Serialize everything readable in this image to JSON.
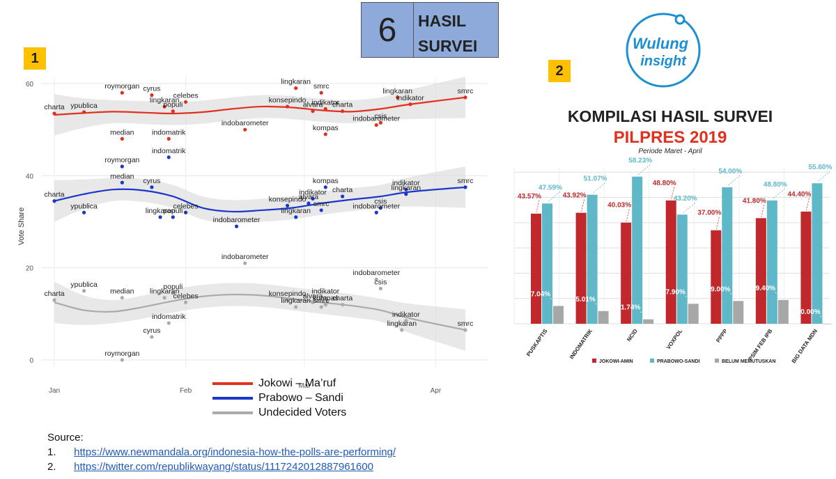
{
  "header": {
    "number": "6",
    "title_line1": "HASIL",
    "title_line2": "SURVEI"
  },
  "badges": {
    "left": "1",
    "right": "2"
  },
  "legend": [
    {
      "label": "Jokowi – Ma’ruf",
      "color": "#e0301e"
    },
    {
      "label": "Prabowo – Sandi",
      "color": "#1b36c9"
    },
    {
      "label": "Undecided Voters",
      "color": "#aaaaaa"
    }
  ],
  "sources": {
    "heading": "Source:",
    "items": [
      {
        "num": "1.",
        "url": "https://www.newmandala.org/indonesia-how-the-polls-are-performing/"
      },
      {
        "num": "2.",
        "url": "https://twitter.com/republikwayang/status/1117242012887961600"
      }
    ]
  },
  "logo": {
    "text_line1": "Wulung",
    "text_line2": "insight"
  },
  "chart_data": [
    {
      "type": "scatter",
      "title": "",
      "xlabel": "",
      "ylabel": "Vote Share",
      "ylim": [
        0,
        62
      ],
      "yticks": [
        0,
        20,
        40,
        60
      ],
      "xticks": [
        "Jan",
        "Feb",
        "Mar",
        "Apr"
      ],
      "grid": true,
      "series": [
        {
          "name": "Jokowi – Ma’ruf",
          "color": "#e0301e",
          "points": [
            {
              "label": "charta",
              "date": "Jan 1",
              "y": 53.5
            },
            {
              "label": "ypublica",
              "date": "Jan 8",
              "y": 53.8
            },
            {
              "label": "roymorgan",
              "date": "Jan 17",
              "y": 58.0
            },
            {
              "label": "median",
              "date": "Jan 17",
              "y": 48.0
            },
            {
              "label": "cyrus",
              "date": "Jan 24",
              "y": 57.5
            },
            {
              "label": "lingkaran",
              "date": "Jan 27",
              "y": 55.0
            },
            {
              "label": "populi",
              "date": "Jan 29",
              "y": 54.0
            },
            {
              "label": "indomatrik",
              "date": "Jan 28",
              "y": 48.0
            },
            {
              "label": "celebes",
              "date": "Feb 1",
              "y": 56.0
            },
            {
              "label": "indobarometer",
              "date": "Feb 15",
              "y": 50.0
            },
            {
              "label": "lingkaran",
              "date": "Feb 27",
              "y": 59.0
            },
            {
              "label": "konsepindo",
              "date": "Feb 25",
              "y": 55.0
            },
            {
              "label": "smrc",
              "date": "Mar 5",
              "y": 58.0
            },
            {
              "label": "alvara",
              "date": "Mar 3",
              "y": 54.0
            },
            {
              "label": "indikator",
              "date": "Mar 6",
              "y": 54.5
            },
            {
              "label": "charta",
              "date": "Mar 10",
              "y": 54.0
            },
            {
              "label": "kompas",
              "date": "Mar 6",
              "y": 49.0
            },
            {
              "label": "csis",
              "date": "Mar 19",
              "y": 51.5
            },
            {
              "label": "indobarometer",
              "date": "Mar 18",
              "y": 51.0
            },
            {
              "label": "lingkaran",
              "date": "Mar 23",
              "y": 57.0
            },
            {
              "label": "indikator",
              "date": "Mar 26",
              "y": 55.5
            },
            {
              "label": "smrc",
              "date": "Apr 8",
              "y": 57.0
            }
          ]
        },
        {
          "name": "Prabowo – Sandi",
          "color": "#1b36c9",
          "points": [
            {
              "label": "charta",
              "date": "Jan 1",
              "y": 34.5
            },
            {
              "label": "ypublica",
              "date": "Jan 8",
              "y": 32.0
            },
            {
              "label": "roymorgan",
              "date": "Jan 17",
              "y": 42.0
            },
            {
              "label": "median",
              "date": "Jan 17",
              "y": 38.5
            },
            {
              "label": "indomatrik",
              "date": "Jan 28",
              "y": 44.0
            },
            {
              "label": "cyrus",
              "date": "Jan 24",
              "y": 37.5
            },
            {
              "label": "lingkaran",
              "date": "Jan 26",
              "y": 31.0
            },
            {
              "label": "populi",
              "date": "Jan 29",
              "y": 31.0
            },
            {
              "label": "celebes",
              "date": "Feb 1",
              "y": 32.0
            },
            {
              "label": "indobarometer",
              "date": "Feb 13",
              "y": 29.0
            },
            {
              "label": "konsepindo",
              "date": "Feb 25",
              "y": 33.5
            },
            {
              "label": "lingkaran",
              "date": "Feb 27",
              "y": 31.0
            },
            {
              "label": "indikator",
              "date": "Mar 3",
              "y": 35.0
            },
            {
              "label": "alvara",
              "date": "Mar 2",
              "y": 34.0
            },
            {
              "label": "kompas",
              "date": "Mar 6",
              "y": 37.5
            },
            {
              "label": "smrc",
              "date": "Mar 5",
              "y": 32.5
            },
            {
              "label": "charta",
              "date": "Mar 10",
              "y": 35.5
            },
            {
              "label": "csis",
              "date": "Mar 19",
              "y": 33.0
            },
            {
              "label": "indobarometer",
              "date": "Mar 18",
              "y": 32.0
            },
            {
              "label": "indikator",
              "date": "Mar 25",
              "y": 37.0
            },
            {
              "label": "lingkaran",
              "date": "Mar 25",
              "y": 36.0
            },
            {
              "label": "smrc",
              "date": "Apr 8",
              "y": 37.5
            }
          ]
        },
        {
          "name": "Undecided Voters",
          "color": "#aaaaaa",
          "points": [
            {
              "label": "charta",
              "date": "Jan 1",
              "y": 13.0
            },
            {
              "label": "ypublica",
              "date": "Jan 8",
              "y": 15.0
            },
            {
              "label": "median",
              "date": "Jan 17",
              "y": 13.5
            },
            {
              "label": "lingkaran",
              "date": "Jan 27",
              "y": 13.5
            },
            {
              "label": "populi",
              "date": "Jan 29",
              "y": 14.5
            },
            {
              "label": "celebes",
              "date": "Feb 1",
              "y": 12.5
            },
            {
              "label": "indomatrik",
              "date": "Jan 28",
              "y": 8.0
            },
            {
              "label": "cyrus",
              "date": "Jan 24",
              "y": 5.0
            },
            {
              "label": "roymorgan",
              "date": "Jan 17",
              "y": 0.0
            },
            {
              "label": "indobarometer",
              "date": "Feb 15",
              "y": 21.0
            },
            {
              "label": "konsepindo",
              "date": "Feb 25",
              "y": 13.0
            },
            {
              "label": "alvara",
              "date": "Mar 3",
              "y": 12.5
            },
            {
              "label": "lingkaran",
              "date": "Feb 27",
              "y": 11.5
            },
            {
              "label": "indikator",
              "date": "Mar 6",
              "y": 13.5
            },
            {
              "label": "kompas",
              "date": "Mar 6",
              "y": 12.0
            },
            {
              "label": "smrc",
              "date": "Mar 5",
              "y": 11.5
            },
            {
              "label": "charta",
              "date": "Mar 10",
              "y": 12.0
            },
            {
              "label": "indobarometer",
              "date": "Mar 18",
              "y": 17.5
            },
            {
              "label": "csis",
              "date": "Mar 19",
              "y": 15.5
            },
            {
              "label": "indikator",
              "date": "Mar 25",
              "y": 8.5
            },
            {
              "label": "lingkaran",
              "date": "Mar 24",
              "y": 6.5
            },
            {
              "label": "smrc",
              "date": "Apr 8",
              "y": 6.5
            }
          ]
        }
      ],
      "trend": {
        "Jokowi – Ma’ruf": [
          53.2,
          53.6,
          53.9,
          53.7,
          53.5,
          53.8,
          54.5,
          55.0,
          54.8,
          54.2,
          53.9,
          54.5,
          55.5,
          57.0
        ],
        "Prabowo – Sandi": [
          34.5,
          36.0,
          37.0,
          36.8,
          35.5,
          33.0,
          32.2,
          32.5,
          33.0,
          34.0,
          34.8,
          35.5,
          36.5,
          37.5
        ],
        "Undecided Voters": [
          12.5,
          10.8,
          10.5,
          11.5,
          12.8,
          13.8,
          14.2,
          14.0,
          13.3,
          12.5,
          11.8,
          10.8,
          9.0,
          6.5
        ]
      },
      "trend_x": [
        "Jan 1",
        "Jan 8",
        "Jan 15",
        "Jan 22",
        "Jan 29",
        "Feb 5",
        "Feb 12",
        "Feb 19",
        "Feb 26",
        "Mar 5",
        "Mar 12",
        "Mar 19",
        "Mar 26",
        "Apr 8"
      ]
    },
    {
      "type": "bar",
      "title": "KOMPILASI HASIL SURVEI",
      "subtitle": "PILPRES 2019",
      "period": "Periode Maret - April",
      "categories": [
        "PUSKAPTIS",
        "INDOMATRIK",
        "NCID",
        "VOXPOL",
        "PPPP",
        "PSIM FEB IPB",
        "BIG DATA MDN"
      ],
      "series": [
        {
          "name": "JOKOWI-AMIN",
          "color": "#c0282c",
          "values": [
            43.57,
            43.92,
            40.03,
            48.8,
            37.0,
            41.8,
            44.4
          ]
        },
        {
          "name": "PRABOWO-SANDI",
          "color": "#5fb8c8",
          "values": [
            47.59,
            51.07,
            58.23,
            43.2,
            54.0,
            48.8,
            55.6
          ]
        },
        {
          "name": "BELUM MEMUTUSKAN",
          "color": "#a7a7a7",
          "values": [
            7.04,
            5.01,
            1.74,
            7.9,
            9.0,
            9.4,
            0.0
          ]
        }
      ],
      "value_labels": {
        "JOKOWI-AMIN": [
          "43.57%",
          "43.92%",
          "40.03%",
          "48.80%",
          "37.00%",
          "41.80%",
          "44.40%"
        ],
        "PRABOWO-SANDI": [
          "47.59%",
          "51.07%",
          "58.23%",
          "43.20%",
          "54.00%",
          "48.80%",
          "55.60%"
        ],
        "BELUM MEMUTUSKAN": [
          "7.04%",
          "5.01%",
          "1.74%",
          "7.90%",
          "9.00%",
          "9.40%",
          "0.00%"
        ]
      },
      "ylim": [
        0,
        62
      ],
      "grid": true,
      "legend_position": "bottom"
    }
  ]
}
